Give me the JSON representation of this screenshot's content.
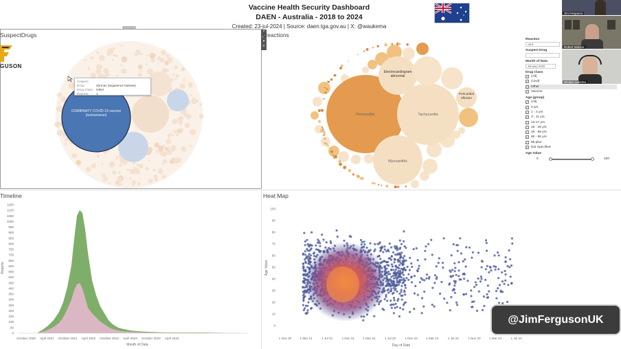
{
  "header": {
    "title": "Vaccine Health Security Dashboard",
    "subtitle": "DAEN - Australia - 2018 to 2024",
    "created_line": "Created: 23-jul-2024 | Source: daen.tga.gov.au | X: @waukema"
  },
  "suspect_drugs": {
    "title": "SuspectDrugs",
    "logo_text": "GUSON",
    "main_bubble_label": "COMIRNATY COVID-19 vaccine (tozinameran)",
    "tooltip": {
      "drug_key": "Suspect Drug:",
      "drug_val": "Zarmac (tegaserod maleate)",
      "class_key": "Drug Class:",
      "class_val": "Other",
      "reports_key": "Reports:",
      "reports_val": "1"
    }
  },
  "reactions": {
    "title": "Reactions",
    "bubbles": [
      "Pericarditis",
      "Tachycardia",
      "Electrocardiogram abnormal",
      "Myocarditis",
      "Pericardial effusion"
    ]
  },
  "filters": {
    "reaction_label": "Reaction",
    "reaction_value": "card",
    "suspect_drug_label": "Suspect Drug",
    "month_label": "Month of Data",
    "month_value": "January 2020",
    "drug_class_label": "Drug Class",
    "drug_class_items": [
      "(All)",
      "Covid",
      "Other",
      "Vaccine"
    ],
    "age_group_label": "Age (group)",
    "age_group_items": [
      "(All)",
      "0 yrs",
      "1 - 2 yrs",
      "3 - 11 yrs",
      "12-17 yrs",
      "18 - 25 yrs",
      "26 - 59 yrs",
      "60 - 85 yrs",
      "85 plus",
      "Not Specified"
    ],
    "age_value_label": "Age Value",
    "age_min": "0",
    "age_max": "100"
  },
  "webcams": {
    "p1": "Jim Ferguson",
    "p2": "Robert Malone",
    "p3": "Wouter Aukema"
  },
  "timeline": {
    "title": "Timeline",
    "ylabel": "Reports",
    "xlabel": "Month of Data",
    "yticks": [
      "0",
      "50",
      "100",
      "150",
      "200",
      "250",
      "300",
      "350",
      "400",
      "450",
      "500",
      "550",
      "600",
      "650",
      "700",
      "750",
      "800",
      "850",
      "900",
      "950",
      "1000",
      "1050",
      "1100",
      "1150"
    ],
    "xticks": [
      "October 2020",
      "April 2021",
      "October 2021",
      "April 2022",
      "October 2022",
      "April 2023",
      "October 2023",
      "April 2024"
    ]
  },
  "heatmap": {
    "title": "Heat Map",
    "ylabel": "Age Value",
    "xlabel": "Day of Date",
    "yticks": [
      "0",
      "10",
      "20",
      "30",
      "40",
      "50",
      "60",
      "70",
      "80",
      "90",
      "100"
    ],
    "xticks": [
      "1 Nov 20",
      "1 Mar 21",
      "1 Jul 21",
      "1 Nov 21",
      "1 Mar 22",
      "1 Jul 22",
      "1 Nov 22",
      "1 Mar 23",
      "1 Jul 23",
      "1 Nov 23",
      "1 Mar 24",
      "1 Jul 24"
    ]
  },
  "watermark": "@JimFergusonUK",
  "colors": {
    "covid_blue": "#4a76b3",
    "reaction_orange": "#e49a4f",
    "heat_blue": "#4a5a9a",
    "heat_core": "#f06a3a",
    "timeline_pink": "#e4b8cc",
    "timeline_yellow": "#f0d56a",
    "timeline_green": "#7fae6a"
  }
}
